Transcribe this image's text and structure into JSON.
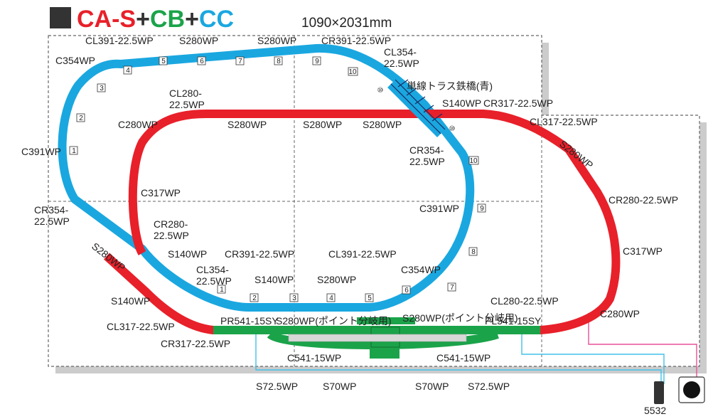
{
  "title": {
    "part1": "CA-S",
    "plus1": "+",
    "part2": "CB",
    "plus2": "+",
    "part3": "CC",
    "dimensions": "1090×2031mm"
  },
  "colors": {
    "ca_s": "#e8202a",
    "cb": "#1ba34a",
    "cc": "#1aa7e0",
    "wire_cyan": "#41c0e8",
    "wire_pink": "#e8509a",
    "board_border": "#666666"
  },
  "track_labels": [
    "CL391-22.5WP",
    "S280WP",
    "S280WP",
    "CR391-22.5WP",
    "C354WP",
    "CL354-\n22.5WP",
    "単線トラス鉄橋(青)",
    "CL280-\n22.5WP",
    "S140WP",
    "CR317-22.5WP",
    "C280WP",
    "S280WP",
    "S280WP",
    "S280WP",
    "CL317-22.5WP",
    "C391WP",
    "CR354-\n22.5WP",
    "S280WP",
    "C317WP",
    "CR280-22.5WP",
    "C391WP",
    "CR354-\n22.5WP",
    "CR280-\n22.5WP",
    "C317WP",
    "S140WP",
    "CR391-22.5WP",
    "CL391-22.5WP",
    "S280WP",
    "CL354-\n22.5WP",
    "S140WP",
    "S280WP",
    "C354WP",
    "S140WP",
    "CL280-22.5WP",
    "CL317-22.5WP",
    "PR541-15SY",
    "S280WP(ポイント分岐用)",
    "S280WP(ポイント分岐用)",
    "PL541-15SY",
    "C280WP",
    "CR317-22.5WP",
    "C541-15WP",
    "C541-15WP",
    "S72.5WP",
    "S70WP",
    "S70WP",
    "S72.5WP"
  ],
  "piece_numbers": [
    "4",
    "5",
    "6",
    "7",
    "8",
    "9",
    "10",
    "3",
    "2",
    "1",
    "10",
    "⑩",
    "⑩",
    "9",
    "8",
    "7",
    "6",
    "5",
    "4",
    "3",
    "2",
    "1"
  ],
  "controller": {
    "label": "5532"
  }
}
